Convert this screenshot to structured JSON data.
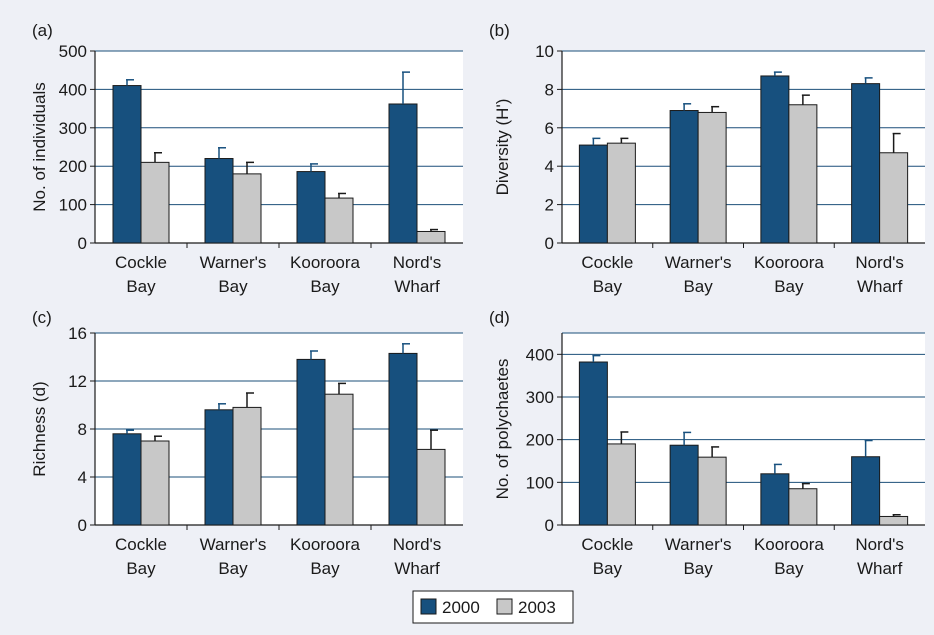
{
  "colors": {
    "background": "#eef0f6",
    "plot_background": "#ffffff",
    "grid": "#1b4f7a",
    "series_2000": "#17507e",
    "series_2003": "#c8c8c8",
    "bar_outline": "#1a1a1a"
  },
  "legend": {
    "placement": "bottom-center",
    "items": [
      {
        "label": "2000",
        "color": "#17507e"
      },
      {
        "label": "2003",
        "color": "#c8c8c8"
      }
    ]
  },
  "chart_data": [
    {
      "panel": "(a)",
      "type": "bar",
      "ylabel": "No. of individuals",
      "ylim": [
        0,
        500
      ],
      "yticks": [
        0,
        100,
        200,
        300,
        400,
        500
      ],
      "categories": [
        [
          "Cockle",
          "Bay"
        ],
        [
          "Warner's",
          "Bay"
        ],
        [
          "Kooroora",
          "Bay"
        ],
        [
          "Nord's",
          "Wharf"
        ]
      ],
      "series": [
        {
          "name": "2000",
          "values": [
            410,
            220,
            186,
            362
          ],
          "errors": [
            15,
            28,
            20,
            83
          ]
        },
        {
          "name": "2003",
          "values": [
            210,
            180,
            117,
            30
          ],
          "errors": [
            25,
            30,
            12,
            5
          ]
        }
      ],
      "grid": true
    },
    {
      "panel": "(b)",
      "type": "bar",
      "ylabel": "Diversity (H')",
      "ylim": [
        0,
        10
      ],
      "yticks": [
        0,
        2,
        4,
        6,
        8,
        10
      ],
      "categories": [
        [
          "Cockle",
          "Bay"
        ],
        [
          "Warner's",
          "Bay"
        ],
        [
          "Kooroora",
          "Bay"
        ],
        [
          "Nord's",
          "Wharf"
        ]
      ],
      "series": [
        {
          "name": "2000",
          "values": [
            5.1,
            6.9,
            8.7,
            8.3
          ],
          "errors": [
            0.35,
            0.35,
            0.2,
            0.3
          ]
        },
        {
          "name": "2003",
          "values": [
            5.2,
            6.8,
            7.2,
            4.7
          ],
          "errors": [
            0.25,
            0.3,
            0.5,
            1.0
          ]
        }
      ],
      "grid": true
    },
    {
      "panel": "(c)",
      "type": "bar",
      "ylabel": "Richness (d)",
      "ylim": [
        0,
        16
      ],
      "yticks": [
        0,
        4,
        8,
        12,
        16
      ],
      "categories": [
        [
          "Cockle",
          "Bay"
        ],
        [
          "Warner's",
          "Bay"
        ],
        [
          "Kooroora",
          "Bay"
        ],
        [
          "Nord's",
          "Wharf"
        ]
      ],
      "series": [
        {
          "name": "2000",
          "values": [
            7.6,
            9.6,
            13.8,
            14.3
          ],
          "errors": [
            0.3,
            0.5,
            0.7,
            0.8
          ]
        },
        {
          "name": "2003",
          "values": [
            7.0,
            9.8,
            10.9,
            6.3
          ],
          "errors": [
            0.4,
            1.2,
            0.9,
            1.6
          ]
        }
      ],
      "grid": true
    },
    {
      "panel": "(d)",
      "type": "bar",
      "ylabel": "No. of polychaetes",
      "ylim": [
        0,
        450
      ],
      "yticks": [
        0,
        100,
        200,
        300,
        400
      ],
      "categories": [
        [
          "Cockle",
          "Bay"
        ],
        [
          "Warner's",
          "Bay"
        ],
        [
          "Kooroora",
          "Bay"
        ],
        [
          "Nord's",
          "Wharf"
        ]
      ],
      "series": [
        {
          "name": "2000",
          "values": [
            382,
            187,
            120,
            160
          ],
          "errors": [
            15,
            30,
            22,
            38
          ]
        },
        {
          "name": "2003",
          "values": [
            190,
            159,
            85,
            20
          ],
          "errors": [
            28,
            24,
            12,
            4
          ]
        }
      ],
      "grid": true
    }
  ]
}
